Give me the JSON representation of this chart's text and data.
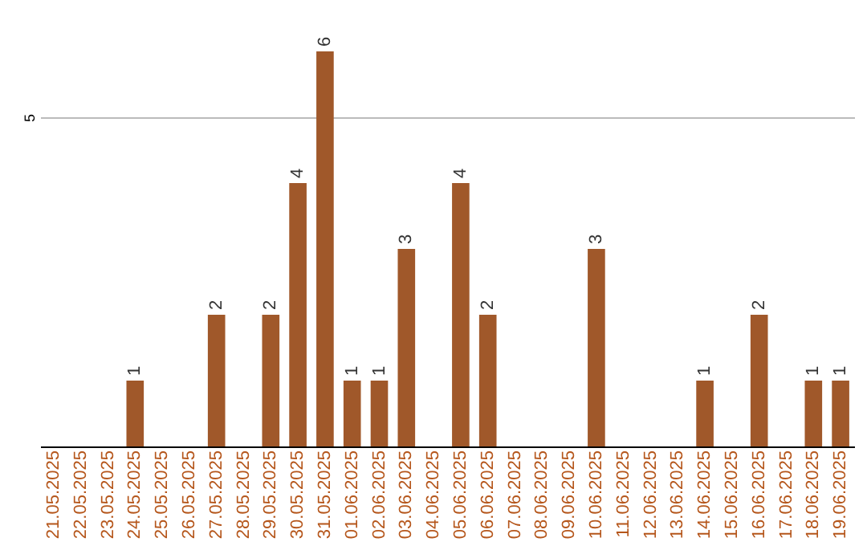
{
  "chart_data": {
    "type": "bar",
    "categories": [
      "21.05.2025",
      "22.05.2025",
      "23.05.2025",
      "24.05.2025",
      "25.05.2025",
      "26.05.2025",
      "27.05.2025",
      "28.05.2025",
      "29.05.2025",
      "30.05.2025",
      "31.05.2025",
      "01.06.2025",
      "02.06.2025",
      "03.06.2025",
      "04.06.2025",
      "05.06.2025",
      "06.06.2025",
      "07.06.2025",
      "08.06.2025",
      "09.06.2025",
      "10.06.2025",
      "11.06.2025",
      "12.06.2025",
      "13.06.2025",
      "14.06.2025",
      "15.06.2025",
      "16.06.2025",
      "17.06.2025",
      "18.06.2025",
      "19.06.2025"
    ],
    "values": [
      0,
      0,
      0,
      1,
      0,
      0,
      2,
      0,
      2,
      4,
      6,
      1,
      1,
      3,
      0,
      4,
      2,
      0,
      0,
      0,
      3,
      0,
      0,
      0,
      1,
      0,
      2,
      0,
      1,
      1
    ],
    "value_labels": [
      null,
      null,
      null,
      "1",
      null,
      null,
      "2",
      null,
      "2",
      "4",
      "6",
      "1",
      "1",
      "3",
      null,
      "4",
      "2",
      null,
      null,
      null,
      "3",
      null,
      null,
      null,
      "1",
      null,
      "2",
      null,
      "1",
      "1"
    ],
    "color": "#a0582a",
    "ref_lines": [
      {
        "axis": "y",
        "value": 5,
        "label": "5",
        "color": "#bbbbbb"
      }
    ]
  }
}
